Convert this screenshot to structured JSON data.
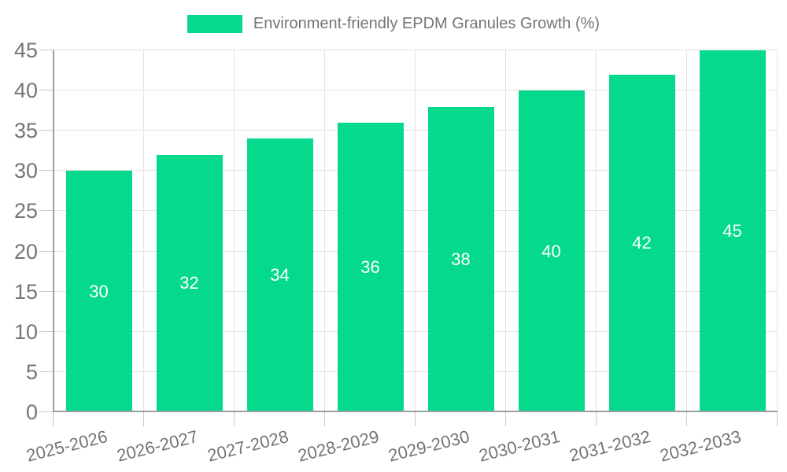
{
  "chart_data": {
    "type": "bar",
    "title": "Environment-friendly EPDM Granules Growth (%)",
    "categories": [
      "2025-2026",
      "2026-2027",
      "2027-2028",
      "2028-2029",
      "2029-2030",
      "2030-2031",
      "2031-2032",
      "2032-2033"
    ],
    "values": [
      30,
      32,
      34,
      36,
      38,
      40,
      42,
      45
    ],
    "xlabel": "",
    "ylabel": "",
    "ylim": [
      0,
      45
    ],
    "ytick_step": 5,
    "grid": true,
    "legend_position": "top",
    "value_label_position": "inside-center"
  },
  "colors": {
    "bar": "#05d98c",
    "axis_text": "#757575",
    "annotation_text": "#ffffff",
    "gridline": "#e3e3e3",
    "axis_line": "#9e9e9e",
    "tick": "#c9c9c9",
    "background": "#ffffff"
  }
}
